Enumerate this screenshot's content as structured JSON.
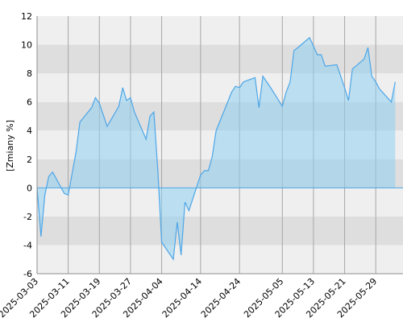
{
  "chart_data": {
    "type": "area",
    "ylabel": "[Zmiany %]",
    "ylim": [
      -6,
      12
    ],
    "y_ticks": [
      "12",
      "10",
      "8",
      "6",
      "4",
      "2",
      "0",
      "-2",
      "-4",
      "-6"
    ],
    "x_ticks": [
      "2025-03-03",
      "2025-03-11",
      "2025-03-19",
      "2025-03-27",
      "2025-04-04",
      "2025-04-14",
      "2025-04-24",
      "2025-05-05",
      "2025-05-13",
      "2025-05-21",
      "2025-05-29"
    ],
    "grid": true,
    "colors": {
      "line": "#4da6e8",
      "fill": "#8fd0f0",
      "band_light": "#efefef",
      "band_dark": "#dedede",
      "vgrid": "#a6a6a6",
      "axis": "#8c8c8c"
    },
    "x": [
      "2025-03-03",
      "2025-03-04",
      "2025-03-05",
      "2025-03-06",
      "2025-03-07",
      "2025-03-10",
      "2025-03-11",
      "2025-03-12",
      "2025-03-13",
      "2025-03-14",
      "2025-03-17",
      "2025-03-18",
      "2025-03-19",
      "2025-03-20",
      "2025-03-21",
      "2025-03-24",
      "2025-03-25",
      "2025-03-26",
      "2025-03-27",
      "2025-03-28",
      "2025-03-31",
      "2025-04-01",
      "2025-04-02",
      "2025-04-03",
      "2025-04-04",
      "2025-04-07",
      "2025-04-08",
      "2025-04-09",
      "2025-04-10",
      "2025-04-11",
      "2025-04-14",
      "2025-04-15",
      "2025-04-16",
      "2025-04-17",
      "2025-04-18",
      "2025-04-22",
      "2025-04-23",
      "2025-04-24",
      "2025-04-25",
      "2025-04-28",
      "2025-04-29",
      "2025-04-30",
      "2025-05-02",
      "2025-05-05",
      "2025-05-06",
      "2025-05-07",
      "2025-05-08",
      "2025-05-09",
      "2025-05-12",
      "2025-05-13",
      "2025-05-14",
      "2025-05-15",
      "2025-05-16",
      "2025-05-19",
      "2025-05-20",
      "2025-05-21",
      "2025-05-22",
      "2025-05-23",
      "2025-05-26",
      "2025-05-27",
      "2025-05-28",
      "2025-05-29",
      "2025-05-30",
      "2025-06-02",
      "2025-06-03"
    ],
    "series": [
      {
        "values": [
          0.0,
          -3.4,
          -0.5,
          0.8,
          1.1,
          -0.4,
          -0.5,
          1.0,
          2.5,
          4.6,
          5.6,
          6.3,
          5.9,
          5.1,
          4.3,
          5.7,
          7.0,
          6.1,
          6.3,
          5.3,
          3.4,
          5.0,
          5.3,
          1.3,
          -3.8,
          -5.0,
          -2.4,
          -4.7,
          -1.0,
          -1.6,
          0.9,
          1.2,
          1.2,
          2.2,
          4.0,
          6.7,
          7.1,
          7.0,
          7.4,
          7.7,
          5.6,
          7.8,
          7.0,
          5.7,
          6.7,
          7.4,
          9.6,
          9.8,
          10.5,
          9.9,
          9.3,
          9.3,
          8.5,
          8.6,
          7.8,
          7.0,
          6.1,
          8.3,
          9.0,
          9.8,
          7.8,
          7.4,
          6.9,
          6.0,
          7.4
        ]
      }
    ]
  }
}
